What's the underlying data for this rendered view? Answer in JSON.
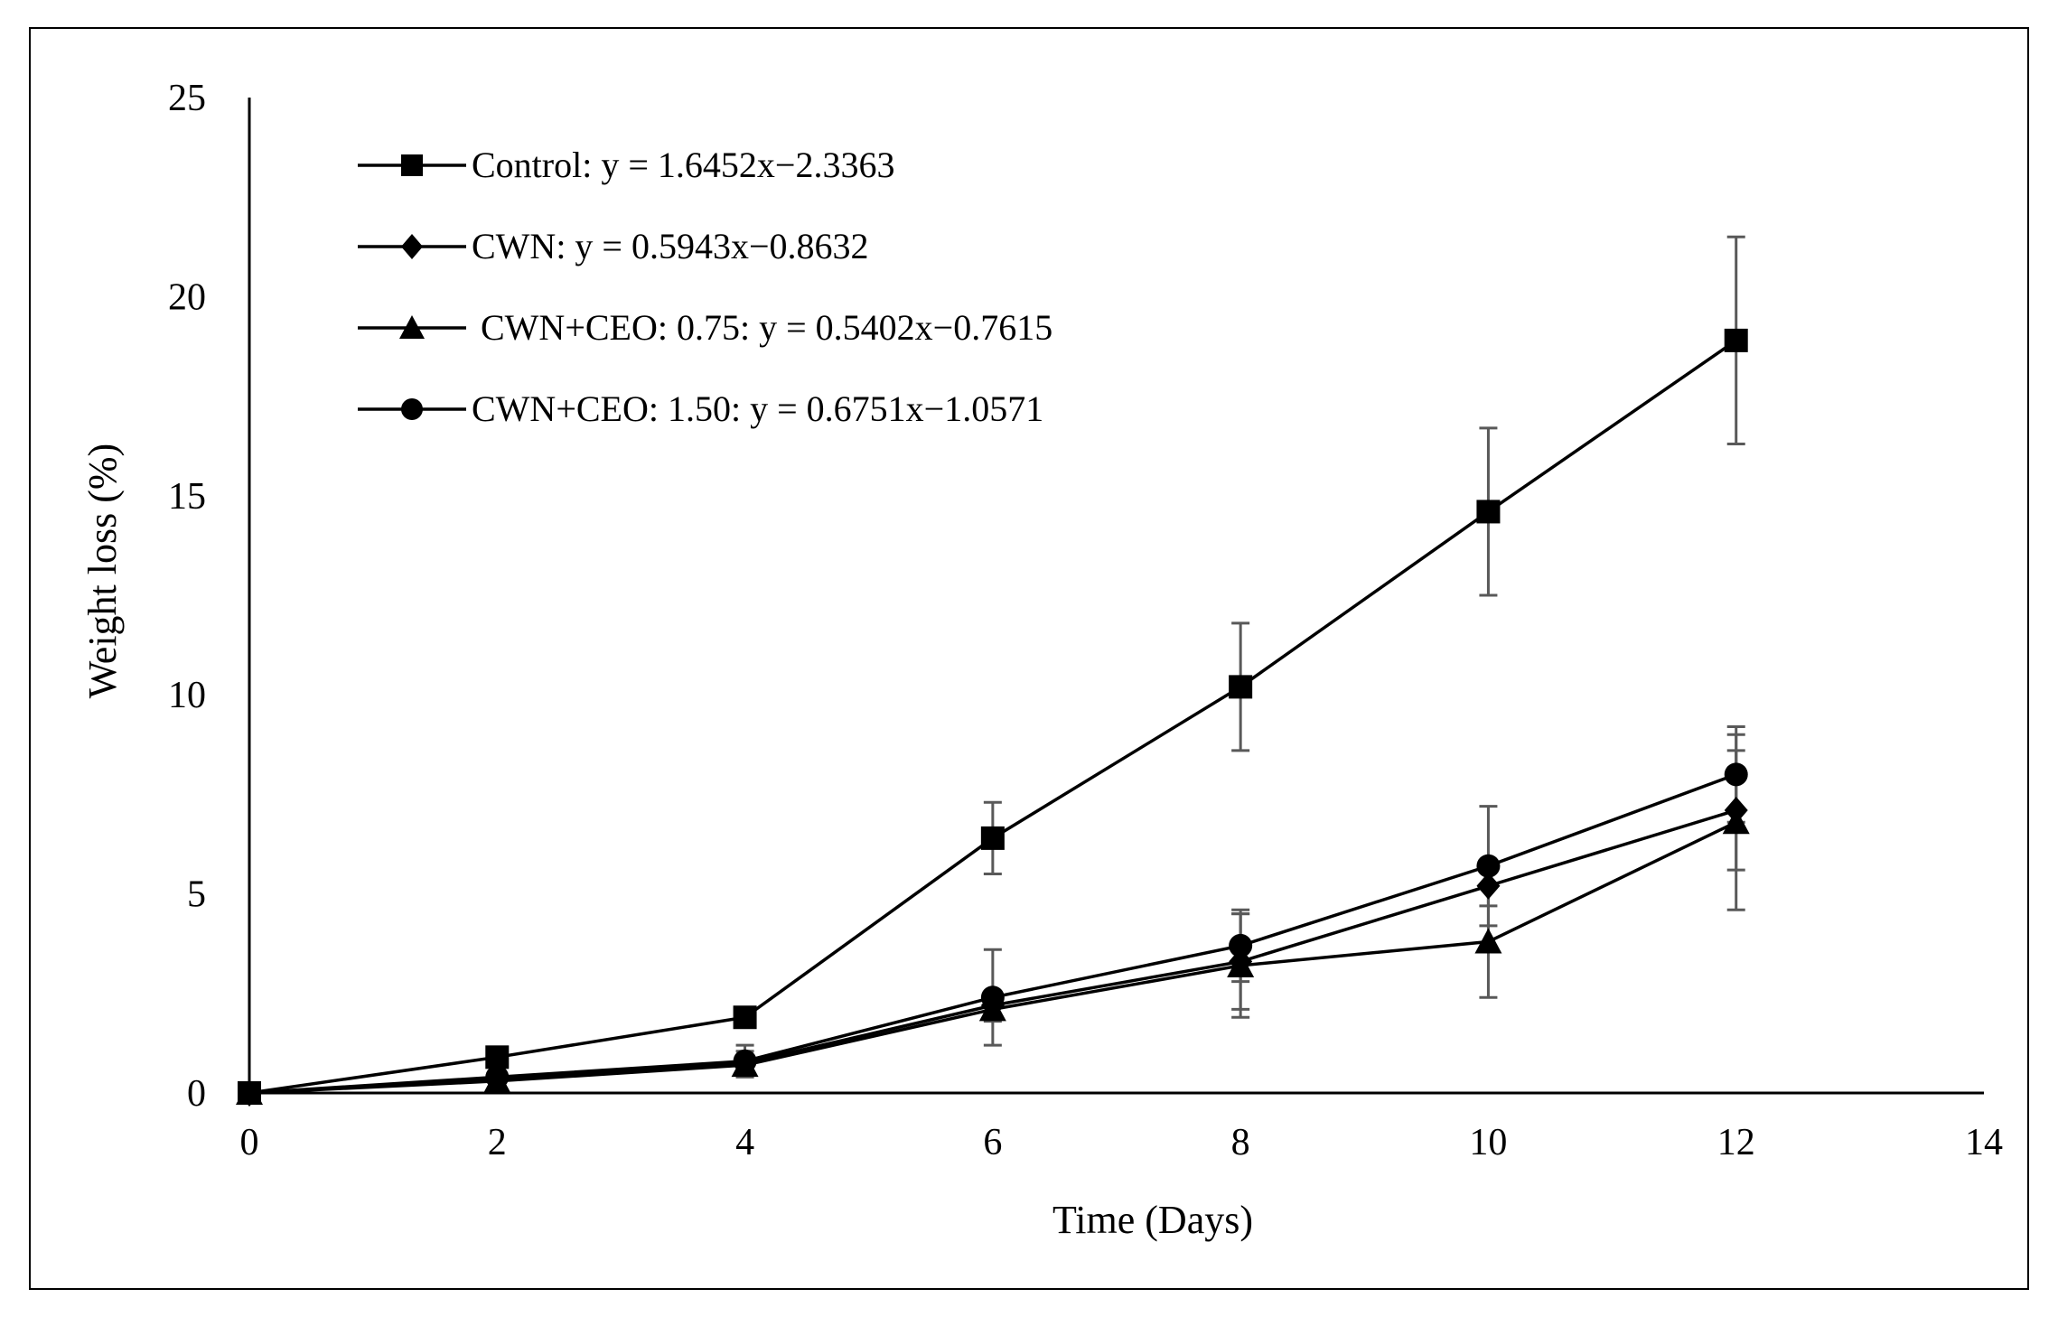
{
  "chart_data": {
    "type": "line",
    "xlabel": "Time (Days)",
    "ylabel": "Weight loss (%)",
    "xlim": [
      0,
      14
    ],
    "ylim": [
      0,
      25
    ],
    "xticks": [
      0,
      2,
      4,
      6,
      8,
      10,
      12,
      14
    ],
    "yticks": [
      0,
      5,
      10,
      15,
      20,
      25
    ],
    "grid": false,
    "legend_position": "top-left",
    "x": [
      0,
      2,
      4,
      6,
      8,
      10,
      12
    ],
    "series": [
      {
        "name": "Control: y = 1.6452x−2.3363",
        "marker": "square",
        "values": [
          0,
          0.9,
          1.9,
          6.4,
          10.2,
          14.6,
          18.9
        ],
        "errors": [
          0,
          0,
          0,
          0.9,
          1.6,
          2.1,
          2.6
        ]
      },
      {
        "name": "CWN: y = 0.5943x−0.8632",
        "marker": "diamond",
        "values": [
          0,
          0.35,
          0.75,
          2.2,
          3.3,
          5.2,
          7.1
        ],
        "errors": [
          0,
          0,
          0.3,
          0.3,
          1.2,
          0.5,
          1.5
        ]
      },
      {
        "name": " CWN+CEO: 0.75: y = 0.5402x−0.7615",
        "marker": "triangle",
        "values": [
          0,
          0.3,
          0.7,
          2.1,
          3.2,
          3.8,
          6.8
        ],
        "errors": [
          0,
          0,
          0,
          0.3,
          1.3,
          1.4,
          2.2
        ]
      },
      {
        "name": "CWN+CEO: 1.50: y = 0.6751x−1.0571",
        "marker": "circle",
        "values": [
          0,
          0.4,
          0.8,
          2.4,
          3.7,
          5.7,
          8.0
        ],
        "errors": [
          0,
          0,
          0.4,
          1.2,
          0.9,
          1.5,
          1.2
        ]
      }
    ]
  }
}
